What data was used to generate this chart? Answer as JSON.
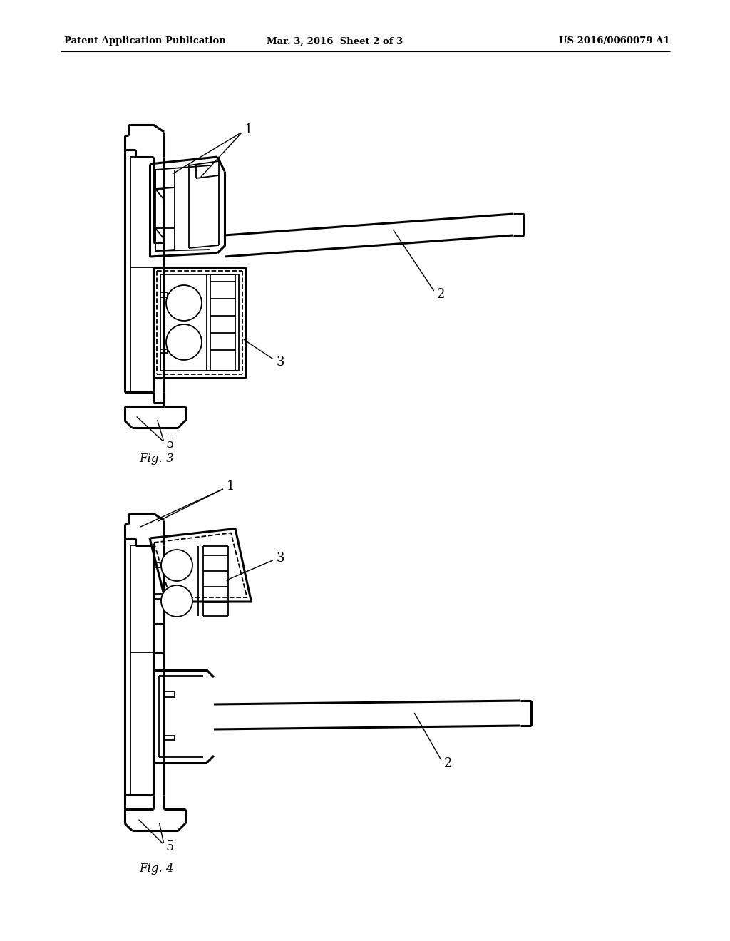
{
  "background_color": "#ffffff",
  "header_left": "Patent Application Publication",
  "header_mid": "Mar. 3, 2016  Sheet 2 of 3",
  "header_right": "US 2016/0060079 A1",
  "fig3_label": "Fig. 3",
  "fig4_label": "Fig. 4",
  "lc": "#000000",
  "lw": 1.3,
  "tlw": 2.2
}
